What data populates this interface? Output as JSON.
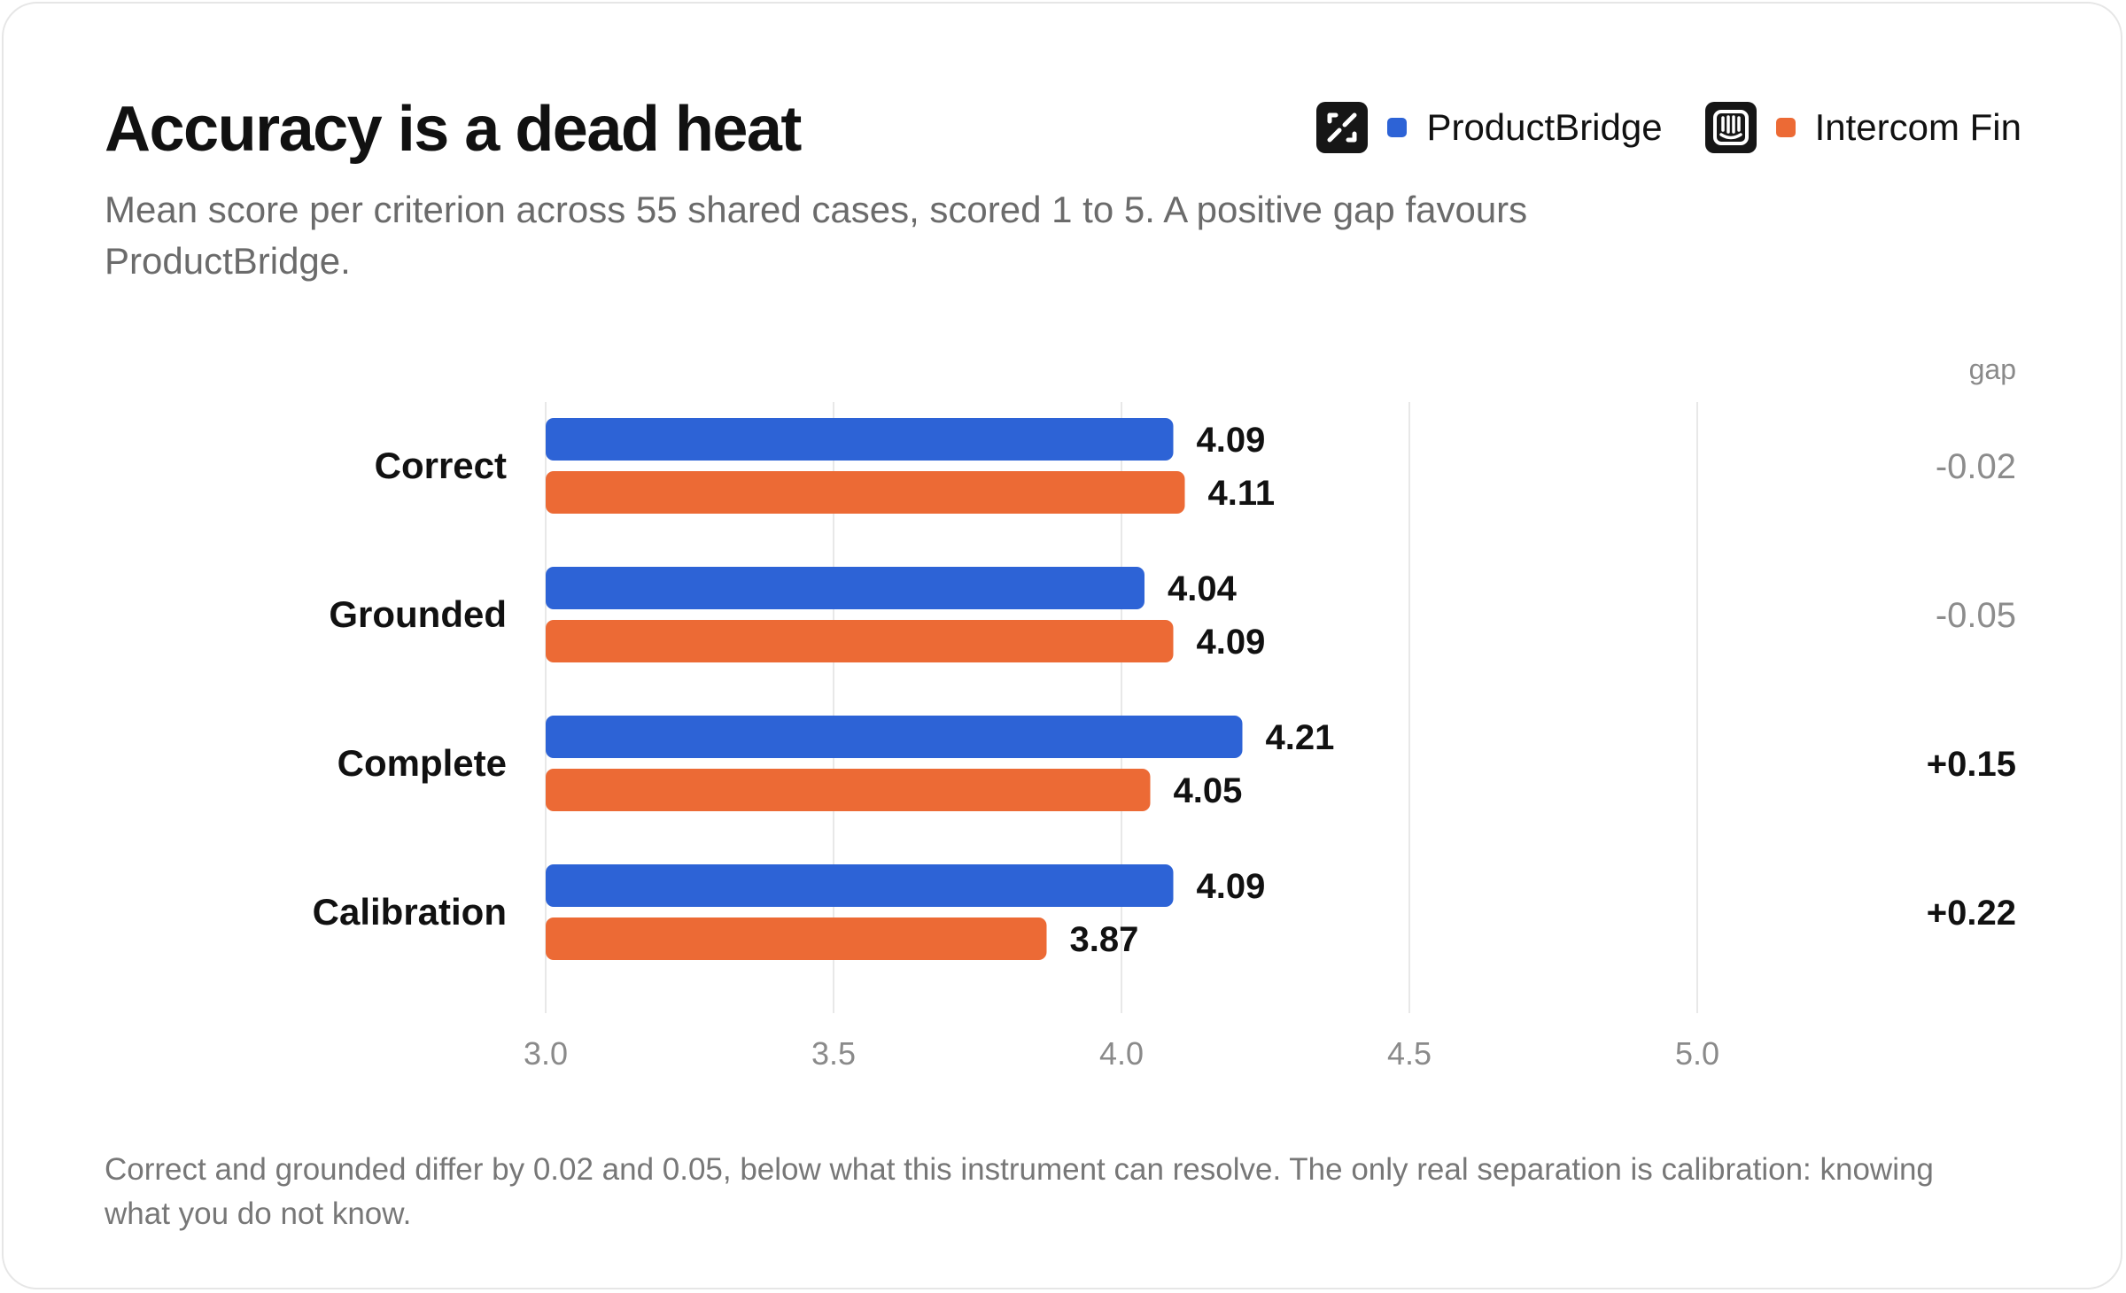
{
  "card": {
    "title": "Accuracy is a dead heat",
    "subtitle": "Mean score per criterion across 55 shared cases, scored 1 to 5. A positive gap favours ProductBridge.",
    "footnote": "Correct and grounded differ by 0.02 and 0.05, below what this instrument can resolve. The only real separation is calibration: knowing what you do not know."
  },
  "legend": [
    {
      "name": "ProductBridge",
      "color": "#2d63d6",
      "icon": "productbridge-logo-icon"
    },
    {
      "name": "Intercom Fin",
      "color": "#ec6a35",
      "icon": "intercom-logo-icon"
    }
  ],
  "colors": {
    "productbridge": "#2d63d6",
    "intercom_fin": "#ec6a35",
    "gap_negative": "#8c8c8c",
    "gap_positive": "#111111",
    "grid": "#e8e8e8"
  },
  "chart_data": {
    "type": "bar",
    "orientation": "horizontal",
    "categories": [
      "Correct",
      "Grounded",
      "Complete",
      "Calibration"
    ],
    "series": [
      {
        "name": "ProductBridge",
        "values": [
          4.09,
          4.04,
          4.21,
          4.09
        ],
        "labels": [
          "4.09",
          "4.04",
          "4.21",
          "4.09"
        ]
      },
      {
        "name": "Intercom Fin",
        "values": [
          4.11,
          4.09,
          4.05,
          3.87
        ],
        "labels": [
          "4.11",
          "4.09",
          "4.05",
          "3.87"
        ]
      }
    ],
    "gap_header": "gap",
    "gaps": [
      -0.02,
      -0.05,
      0.15,
      0.22
    ],
    "gap_labels": [
      "-0.02",
      "-0.05",
      "+0.15",
      "+0.22"
    ],
    "xlim": [
      3.0,
      5.0
    ],
    "xticks": [
      3.0,
      3.5,
      4.0,
      4.5,
      5.0
    ],
    "xtick_labels": [
      "3.0",
      "3.5",
      "4.0",
      "4.5",
      "5.0"
    ],
    "grid": true,
    "legend_position": "top-right"
  }
}
